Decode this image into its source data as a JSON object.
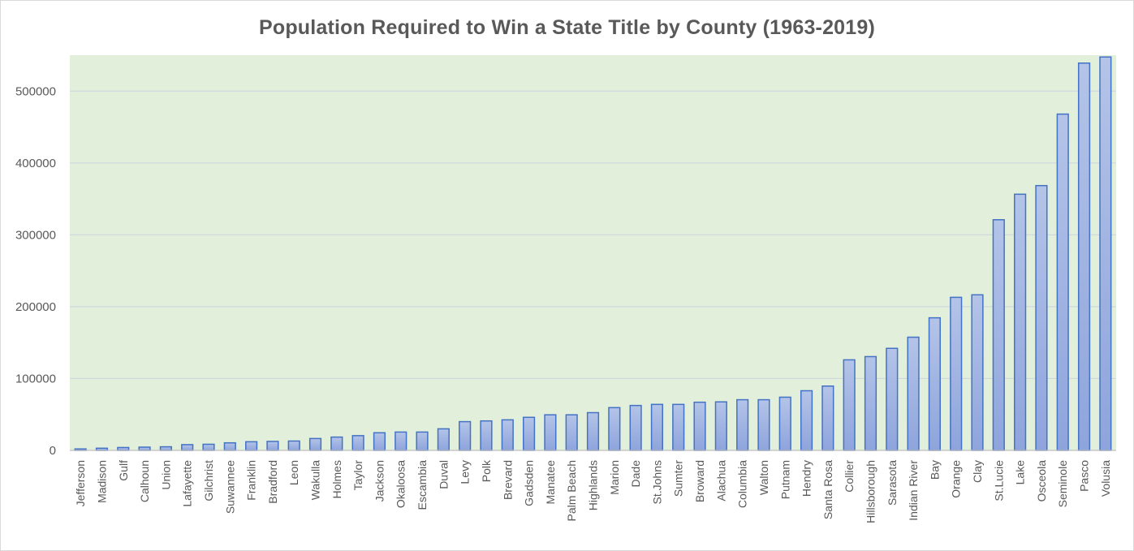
{
  "chart_data": {
    "type": "bar",
    "title": "Population Required to Win a State Title by County (1963-2019)",
    "xlabel": "",
    "ylabel": "",
    "ylim": [
      0,
      550000
    ],
    "yticks": [
      0,
      100000,
      200000,
      300000,
      400000,
      500000
    ],
    "ytick_labels": [
      "0",
      "100000",
      "200000",
      "300000",
      "400000",
      "500000"
    ],
    "grid": true,
    "legend": "none",
    "colors": {
      "bar_fill_top": "#b4c4e8",
      "bar_fill_bottom": "#8ea4dc",
      "bar_stroke": "#4472c4",
      "plot_background": "#e2efda",
      "gridline": "#d0d7de",
      "text": "#595959"
    },
    "categories": [
      "Jefferson",
      "Madison",
      "Gulf",
      "Calhoun",
      "Union",
      "Lafayette",
      "Gilchrist",
      "Suwannee",
      "Franklin",
      "Bradford",
      "Leon",
      "Wakulla",
      "Holmes",
      "Taylor",
      "Jackson",
      "Okaloosa",
      "Escambia",
      "Duval",
      "Levy",
      "Polk",
      "Brevard",
      "Gadsden",
      "Manatee",
      "Palm Beach",
      "Highlands",
      "Marion",
      "Dade",
      "St.Johns",
      "Sumter",
      "Broward",
      "Alachua",
      "Columbia",
      "Walton",
      "Putnam",
      "Hendry",
      "Santa Rosa",
      "Collier",
      "Hillsborough",
      "Sarasota",
      "Indian River",
      "Bay",
      "Orange",
      "Clay",
      "St.Lucie",
      "Lake",
      "Osceola",
      "Seminole",
      "Pasco",
      "Volusia"
    ],
    "values": [
      2000,
      3000,
      4000,
      4500,
      5000,
      8000,
      8500,
      10500,
      12000,
      12500,
      13000,
      16500,
      18500,
      20500,
      24500,
      25500,
      25500,
      30000,
      40000,
      41000,
      42500,
      46000,
      49500,
      49500,
      52500,
      59500,
      62500,
      64000,
      64000,
      67000,
      67500,
      70500,
      70500,
      74000,
      83000,
      89500,
      126000,
      130500,
      142000,
      157500,
      184500,
      213000,
      216500,
      321000,
      356500,
      368500,
      468000,
      539000,
      547500
    ]
  }
}
